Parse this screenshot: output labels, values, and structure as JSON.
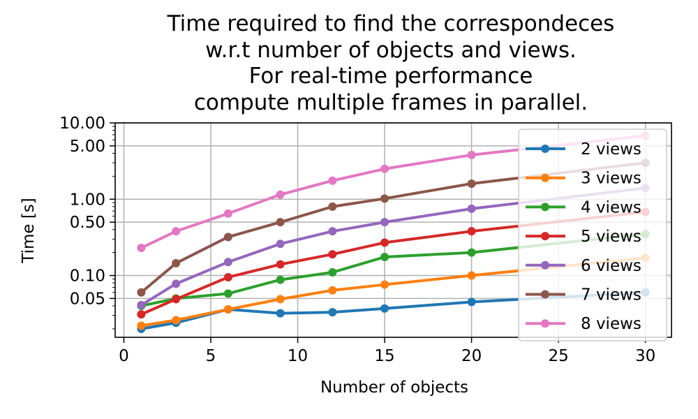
{
  "chart_data": {
    "type": "line",
    "title_lines": [
      "Time required to find the correspondeces",
      "w.r.t number of objects and views.",
      "For real-time performance",
      "compute multiple frames in parallel."
    ],
    "xlabel": "Number of objects",
    "ylabel": "Time [s]",
    "x_scale": "linear",
    "y_scale": "log",
    "xlim": [
      -0.5,
      31.5
    ],
    "ylim": [
      0.0155,
      10
    ],
    "grid": true,
    "legend_position": "right",
    "x_ticks": [
      0,
      5,
      10,
      15,
      20,
      25,
      30
    ],
    "x_tick_labels": [
      "0",
      "5",
      "10",
      "15",
      "20",
      "25",
      "30"
    ],
    "y_ticks": [
      0.05,
      0.1,
      0.5,
      1,
      5,
      10
    ],
    "y_tick_labels": [
      "0.05",
      "0.10",
      "0.50",
      "1.00",
      "5.00",
      "10.00"
    ],
    "x": [
      1,
      3,
      6,
      9,
      12,
      15,
      20,
      30
    ],
    "series": [
      {
        "name": "2 views",
        "color": "#1f77b4",
        "values": [
          0.02,
          0.024,
          0.036,
          0.032,
          0.033,
          0.037,
          0.045,
          0.06
        ]
      },
      {
        "name": "3 views",
        "color": "#ff7f0e",
        "values": [
          0.022,
          0.026,
          0.036,
          0.049,
          0.064,
          0.076,
          0.1,
          0.17
        ]
      },
      {
        "name": "4 views",
        "color": "#2ca02c",
        "values": [
          0.04,
          0.05,
          0.058,
          0.088,
          0.11,
          0.175,
          0.2,
          0.35
        ]
      },
      {
        "name": "5 views",
        "color": "#d62728",
        "values": [
          0.031,
          0.049,
          0.095,
          0.14,
          0.19,
          0.27,
          0.38,
          0.68
        ]
      },
      {
        "name": "6 views",
        "color": "#9467bd",
        "values": [
          0.041,
          0.078,
          0.15,
          0.26,
          0.38,
          0.5,
          0.75,
          1.4
        ]
      },
      {
        "name": "7 views",
        "color": "#8c564b",
        "values": [
          0.06,
          0.145,
          0.32,
          0.5,
          0.8,
          1.02,
          1.6,
          3.0
        ]
      },
      {
        "name": "8 views",
        "color": "#e377c2",
        "values": [
          0.23,
          0.38,
          0.65,
          1.15,
          1.75,
          2.5,
          3.8,
          6.8
        ]
      }
    ]
  }
}
